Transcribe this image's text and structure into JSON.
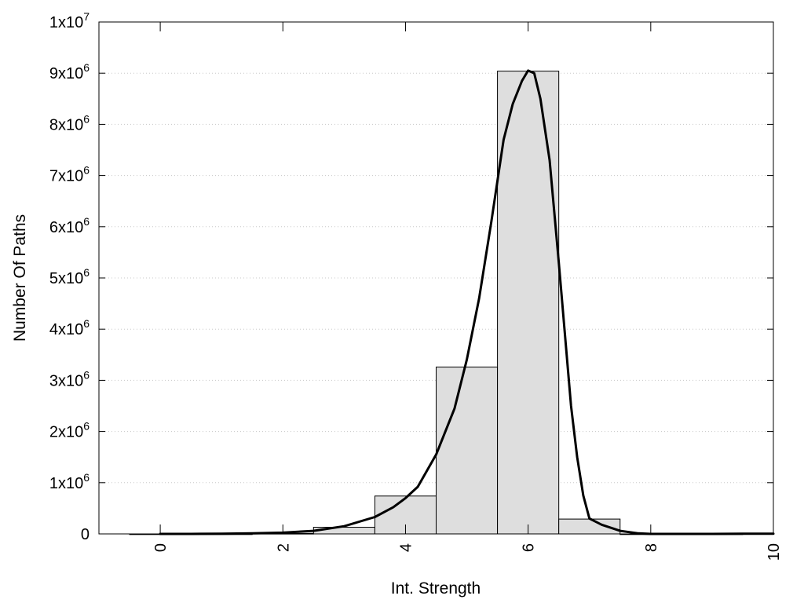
{
  "chart_data": {
    "type": "bar",
    "title": "",
    "xlabel": "Int. Strength",
    "ylabel": "Number Of Paths",
    "xlim": [
      -1,
      10
    ],
    "ylim": [
      0,
      10000000
    ],
    "grid": true,
    "legend": "none",
    "bar_color": "#dedede",
    "line_color": "#000000",
    "x_ticks": [
      {
        "value": 0,
        "label": "0"
      },
      {
        "value": 2,
        "label": "2"
      },
      {
        "value": 4,
        "label": "4"
      },
      {
        "value": 6,
        "label": "6"
      },
      {
        "value": 8,
        "label": "8"
      },
      {
        "value": 10,
        "label": "10"
      }
    ],
    "y_ticks": [
      {
        "value": 0,
        "base": "0",
        "exp": ""
      },
      {
        "value": 1000000,
        "base": "1x10",
        "exp": "6"
      },
      {
        "value": 2000000,
        "base": "2x10",
        "exp": "6"
      },
      {
        "value": 3000000,
        "base": "3x10",
        "exp": "6"
      },
      {
        "value": 4000000,
        "base": "4x10",
        "exp": "6"
      },
      {
        "value": 5000000,
        "base": "5x10",
        "exp": "6"
      },
      {
        "value": 6000000,
        "base": "6x10",
        "exp": "6"
      },
      {
        "value": 7000000,
        "base": "7x10",
        "exp": "6"
      },
      {
        "value": 8000000,
        "base": "8x10",
        "exp": "6"
      },
      {
        "value": 9000000,
        "base": "9x10",
        "exp": "6"
      },
      {
        "value": 10000000,
        "base": "1x10",
        "exp": "7"
      }
    ],
    "bars": [
      {
        "x": 0,
        "value": 0
      },
      {
        "x": 1,
        "value": 0
      },
      {
        "x": 2,
        "value": 10000
      },
      {
        "x": 3,
        "value": 130000
      },
      {
        "x": 4,
        "value": 740000
      },
      {
        "x": 5,
        "value": 3260000
      },
      {
        "x": 6,
        "value": 9040000
      },
      {
        "x": 7,
        "value": 290000
      },
      {
        "x": 8,
        "value": 0
      },
      {
        "x": 9,
        "value": 0
      }
    ],
    "curve": {
      "x": [
        0,
        0.5,
        1,
        1.5,
        2,
        2.5,
        3,
        3.5,
        3.8,
        4,
        4.2,
        4.5,
        4.8,
        5,
        5.2,
        5.4,
        5.6,
        5.75,
        5.9,
        6,
        6.1,
        6.2,
        6.35,
        6.5,
        6.6,
        6.7,
        6.8,
        6.9,
        7,
        7.2,
        7.5,
        7.8,
        8,
        8.5,
        9,
        9.5,
        10
      ],
      "y": [
        0,
        0,
        5000,
        10000,
        25000,
        60000,
        150000,
        330000,
        520000,
        700000,
        920000,
        1550000,
        2450000,
        3400000,
        4600000,
        6100000,
        7700000,
        8400000,
        8850000,
        9050000,
        9000000,
        8500000,
        7300000,
        5300000,
        3900000,
        2500000,
        1500000,
        750000,
        300000,
        180000,
        60000,
        10000,
        0,
        0,
        0,
        5000,
        5000
      ]
    }
  }
}
